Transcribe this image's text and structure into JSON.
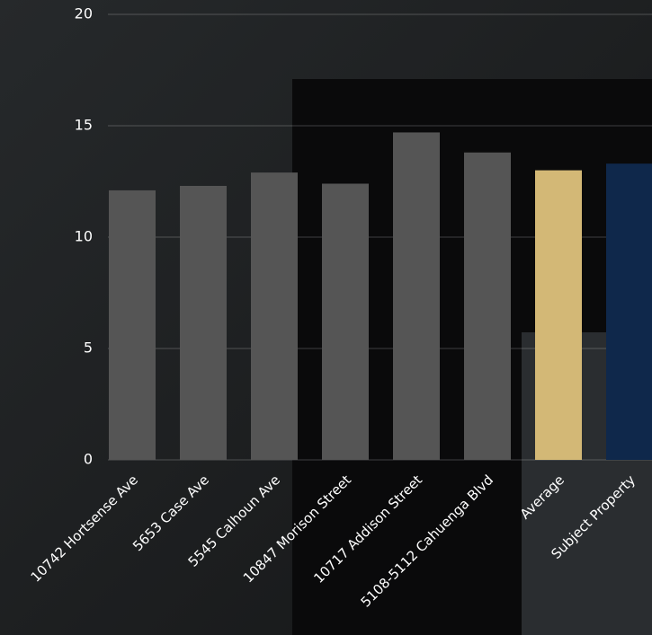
{
  "chart_data": {
    "type": "bar",
    "categories": [
      "10742 Hortsense Ave",
      "5653 Case Ave",
      "5545 Calhoun Ave",
      "10847 Morison Street",
      "10717 Addison Street",
      "5108-5112 Cahuenga Blvd",
      "Average",
      "Subject Property"
    ],
    "values": [
      12.1,
      12.3,
      12.9,
      12.4,
      14.7,
      13.8,
      13.0,
      13.3
    ],
    "colors": [
      "#555555",
      "#555555",
      "#555555",
      "#555555",
      "#555555",
      "#555555",
      "#d3b876",
      "#0f284b"
    ],
    "ylim": [
      0,
      20
    ],
    "yticks": [
      0,
      5,
      10,
      15,
      20
    ],
    "grid": true
  }
}
